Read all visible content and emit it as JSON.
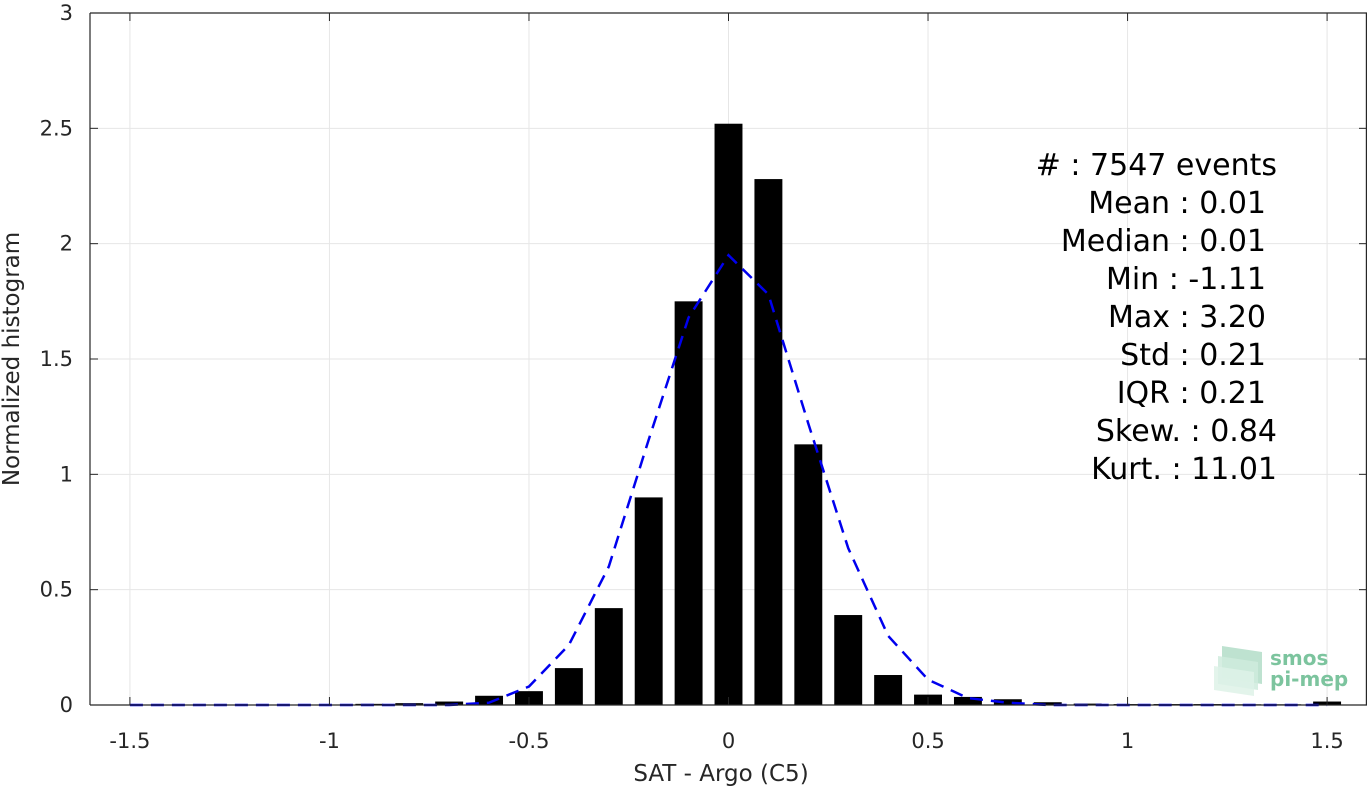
{
  "chart_data": {
    "type": "bar",
    "xlabel": "SAT - Argo (C5)",
    "ylabel": "Normalized histogram",
    "xlim": [
      -1.6,
      1.6
    ],
    "ylim": [
      0,
      3
    ],
    "xticks": [
      -1.5,
      -1,
      -0.5,
      0,
      0.5,
      1,
      1.5
    ],
    "xtick_labels": [
      "-1.5",
      "-1",
      "-0.5",
      "0",
      "0.5",
      "1",
      "1.5"
    ],
    "yticks": [
      0,
      0.5,
      1,
      1.5,
      2,
      2.5,
      3
    ],
    "ytick_labels": [
      "0",
      "0.5",
      "1",
      "1.5",
      "2",
      "2.5",
      "3"
    ],
    "grid": true,
    "bar_width": 0.07,
    "series": [
      {
        "kind": "bar",
        "color": "#000000",
        "x": [
          -1.5,
          -1.4,
          -1.3,
          -1.2,
          -1.1,
          -1.0,
          -0.9,
          -0.8,
          -0.7,
          -0.6,
          -0.5,
          -0.4,
          -0.3,
          -0.2,
          -0.1,
          0.0,
          0.1,
          0.2,
          0.3,
          0.4,
          0.5,
          0.6,
          0.7,
          0.8,
          0.9,
          1.0,
          1.1,
          1.2,
          1.3,
          1.4,
          1.5
        ],
        "values": [
          0,
          0,
          0,
          0,
          0,
          0,
          0.005,
          0.008,
          0.015,
          0.04,
          0.06,
          0.16,
          0.42,
          0.9,
          1.75,
          2.52,
          2.28,
          1.13,
          0.39,
          0.13,
          0.045,
          0.035,
          0.025,
          0.012,
          0.006,
          0.004,
          0.004,
          0.004,
          0.003,
          0.003,
          0.015
        ]
      },
      {
        "kind": "line",
        "style": "dashed",
        "color": "#0000ee",
        "x": [
          -1.5,
          -1.4,
          -1.3,
          -1.2,
          -1.1,
          -1.0,
          -0.9,
          -0.8,
          -0.7,
          -0.6,
          -0.5,
          -0.4,
          -0.3,
          -0.2,
          -0.1,
          0.0,
          0.1,
          0.2,
          0.3,
          0.4,
          0.5,
          0.6,
          0.7,
          0.8,
          0.9,
          1.0,
          1.1,
          1.2,
          1.3,
          1.4,
          1.5
        ],
        "values": [
          0,
          0,
          0,
          0,
          0,
          0,
          0,
          0,
          0,
          0.01,
          0.08,
          0.26,
          0.6,
          1.15,
          1.68,
          1.95,
          1.78,
          1.22,
          0.68,
          0.3,
          0.11,
          0.03,
          0.01,
          0,
          0,
          0,
          0,
          0,
          0,
          0,
          0
        ]
      }
    ],
    "stats": [
      {
        "label": "#  : 7547 events"
      },
      {
        "label": "Mean : 0.01"
      },
      {
        "label": "Median : 0.01"
      },
      {
        "label": "Min : -1.11"
      },
      {
        "label": "Max : 3.20"
      },
      {
        "label": "Std : 0.21"
      },
      {
        "label": "IQR : 0.21"
      },
      {
        "label": "Skew. : 0.84"
      },
      {
        "label": "Kurt. : 11.01"
      }
    ],
    "logo": {
      "line1": "smos",
      "line2": "pi-mep"
    }
  }
}
